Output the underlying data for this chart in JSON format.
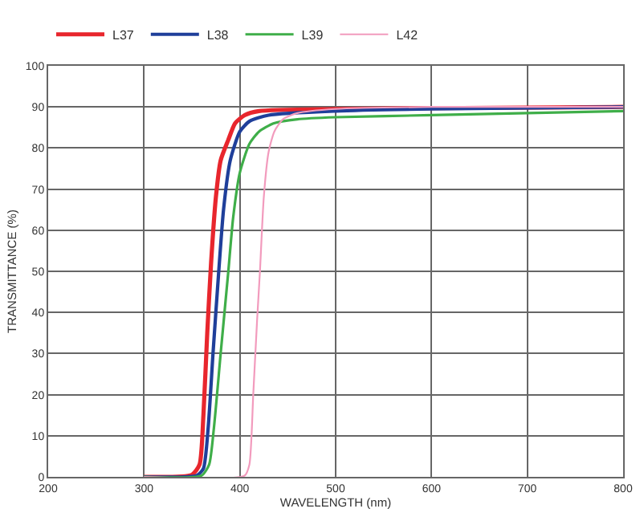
{
  "chart_data": {
    "type": "line",
    "xlabel": "WAVELENGTH (nm)",
    "ylabel": "TRANSMITTANCE (%)",
    "xlim": [
      200,
      800
    ],
    "xticks": [
      200,
      300,
      400,
      500,
      600,
      700,
      800
    ],
    "ylim": [
      0,
      100
    ],
    "yticks": [
      0,
      10,
      20,
      30,
      40,
      50,
      60,
      70,
      80,
      90,
      100
    ],
    "grid": true,
    "legend": "top",
    "marker": "none",
    "line_style": "solid",
    "series": [
      {
        "name": "L37",
        "color": "#e8262d",
        "x": [
          300,
          350,
          358,
          362,
          366,
          370,
          375,
          380,
          388,
          395,
          405,
          420,
          500,
          600,
          800
        ],
        "values": [
          0,
          0.5,
          3,
          15,
          35,
          52,
          68,
          77,
          82,
          86,
          88,
          89,
          89.5,
          89.7,
          90
        ]
      },
      {
        "name": "L38",
        "color": "#1f3f9a",
        "x": [
          300,
          355,
          362,
          367,
          372,
          378,
          383,
          390,
          400,
          410,
          430,
          500,
          600,
          800
        ],
        "values": [
          0,
          0.3,
          2,
          12,
          30,
          50,
          65,
          77,
          84,
          86.5,
          88,
          89,
          89.5,
          90
        ]
      },
      {
        "name": "L39",
        "color": "#3fae49",
        "x": [
          300,
          360,
          368,
          373,
          380,
          388,
          393,
          400,
          410,
          420,
          435,
          460,
          500,
          600,
          700,
          800
        ],
        "values": [
          0,
          0.3,
          3,
          12,
          30,
          50,
          63,
          74,
          81,
          84,
          86,
          87,
          87.5,
          88,
          88.5,
          89
        ]
      },
      {
        "name": "L42",
        "color": "#f29bbd",
        "x": [
          300,
          405,
          410,
          414,
          418,
          421,
          425,
          430,
          436,
          445,
          460,
          500,
          600,
          800
        ],
        "values": [
          0,
          0.3,
          3,
          20,
          38,
          50,
          68,
          79,
          84,
          87,
          88.5,
          89.5,
          90,
          90
        ]
      }
    ]
  }
}
